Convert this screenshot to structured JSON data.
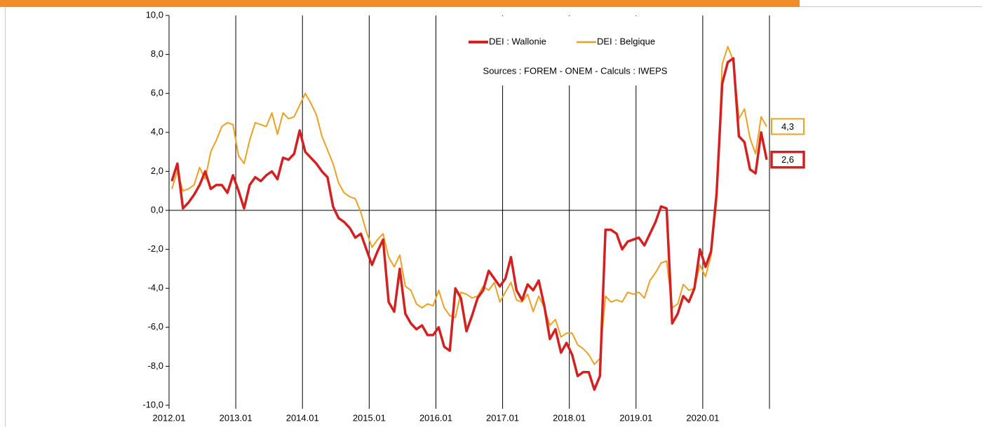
{
  "chart_data": {
    "type": "line",
    "categories": [
      "2012.01",
      null,
      null,
      null,
      null,
      null,
      null,
      null,
      null,
      null,
      null,
      null,
      "2013.01",
      null,
      null,
      null,
      null,
      null,
      null,
      null,
      null,
      null,
      null,
      null,
      "2014.01",
      null,
      null,
      null,
      null,
      null,
      null,
      null,
      null,
      null,
      null,
      null,
      "2015.01",
      null,
      null,
      null,
      null,
      null,
      null,
      null,
      null,
      null,
      null,
      null,
      "2016.01",
      null,
      null,
      null,
      null,
      null,
      null,
      null,
      null,
      null,
      null,
      null,
      "2017.01",
      null,
      null,
      null,
      null,
      null,
      null,
      null,
      null,
      null,
      null,
      null,
      "2018.01",
      null,
      null,
      null,
      null,
      null,
      null,
      null,
      null,
      null,
      null,
      null,
      "2019.01",
      null,
      null,
      null,
      null,
      null,
      null,
      null,
      null,
      null,
      null,
      null,
      "2020.01",
      null,
      null,
      null,
      null,
      null,
      null,
      null,
      null,
      null,
      null,
      null
    ],
    "series": [
      {
        "name": "DEI : Wallonie",
        "color": "#d42020",
        "width": 3.5,
        "end_label": "2,6",
        "values": [
          1.5,
          2.4,
          0.1,
          0.4,
          0.8,
          1.3,
          2.0,
          1.1,
          1.3,
          1.3,
          0.9,
          1.8,
          1.0,
          0.1,
          1.3,
          1.7,
          1.5,
          1.8,
          2.0,
          1.6,
          2.7,
          2.6,
          2.9,
          4.1,
          3.0,
          2.7,
          2.4,
          2.0,
          1.7,
          0.2,
          -0.4,
          -0.6,
          -0.9,
          -1.4,
          -1.2,
          -2.0,
          -2.8,
          -2.1,
          -1.5,
          -4.7,
          -5.2,
          -3.0,
          -5.3,
          -5.8,
          -6.1,
          -5.9,
          -6.4,
          -6.4,
          -6.0,
          -7.0,
          -7.2,
          -4.0,
          -4.5,
          -6.2,
          -5.4,
          -4.5,
          -4.1,
          -3.1,
          -3.5,
          -3.9,
          -3.5,
          -2.4,
          -4.1,
          -4.6,
          -3.8,
          -4.1,
          -3.6,
          -4.9,
          -6.6,
          -6.1,
          -7.3,
          -6.8,
          -7.4,
          -8.5,
          -8.3,
          -8.3,
          -9.2,
          -8.5,
          -1.0,
          -1.0,
          -1.2,
          -2.0,
          -1.6,
          -1.5,
          -1.4,
          -1.8,
          -1.2,
          -0.6,
          0.2,
          0.1,
          -5.8,
          -5.3,
          -4.4,
          -4.7,
          -4.0,
          -2.0,
          -2.9,
          -2.1,
          0.9,
          6.5,
          7.6,
          7.8,
          3.8,
          3.5,
          2.1,
          1.9,
          4.0,
          2.6
        ]
      },
      {
        "name": "DEI : Belgique",
        "color": "#f0a020",
        "width": 2,
        "end_label": "4,3",
        "values": [
          1.1,
          2.0,
          1.0,
          1.1,
          1.3,
          2.2,
          1.6,
          3.0,
          3.6,
          4.3,
          4.5,
          4.4,
          2.8,
          2.4,
          3.6,
          4.5,
          4.4,
          4.3,
          5.0,
          3.9,
          5.0,
          4.7,
          4.8,
          5.4,
          6.0,
          5.5,
          4.9,
          3.8,
          3.1,
          2.4,
          1.4,
          0.9,
          0.7,
          0.6,
          -0.1,
          -1.1,
          -1.9,
          -1.5,
          -1.2,
          -2.4,
          -2.9,
          -2.3,
          -3.9,
          -4.1,
          -4.8,
          -5.0,
          -4.8,
          -4.9,
          -4.1,
          -5.0,
          -5.4,
          -5.5,
          -4.2,
          -4.3,
          -4.5,
          -4.4,
          -3.9,
          -4.1,
          -3.7,
          -4.7,
          -4.2,
          -3.7,
          -4.6,
          -4.7,
          -4.3,
          -5.2,
          -4.4,
          -5.0,
          -5.9,
          -5.6,
          -6.5,
          -6.3,
          -6.3,
          -6.9,
          -7.1,
          -7.4,
          -7.9,
          -7.6,
          -4.4,
          -4.7,
          -4.6,
          -4.7,
          -4.2,
          -4.3,
          -4.2,
          -4.5,
          -3.6,
          -3.2,
          -2.7,
          -2.6,
          -5.0,
          -4.8,
          -3.8,
          -4.1,
          -4.0,
          -2.8,
          -3.4,
          -2.3,
          0.5,
          7.5,
          8.4,
          7.7,
          4.7,
          5.2,
          3.7,
          2.9,
          4.8,
          4.3
        ]
      }
    ],
    "annotation": "Sources : FOREM - ONEM - Calculs : IWEPS",
    "ylim": [
      -10,
      10
    ],
    "yticks": [
      {
        "value": -10,
        "label": "-10,0"
      },
      {
        "value": -8,
        "label": "-8,0"
      },
      {
        "value": -6,
        "label": "-6,0"
      },
      {
        "value": -4,
        "label": "-4,0"
      },
      {
        "value": -2,
        "label": "-2,0"
      },
      {
        "value": 0,
        "label": "0,0"
      },
      {
        "value": 2,
        "label": "2,0"
      },
      {
        "value": 4,
        "label": "4,0"
      },
      {
        "value": 6,
        "label": "6,0"
      },
      {
        "value": 8,
        "label": "8,0"
      },
      {
        "value": 10,
        "label": "10,0"
      }
    ],
    "xgrid": true
  }
}
